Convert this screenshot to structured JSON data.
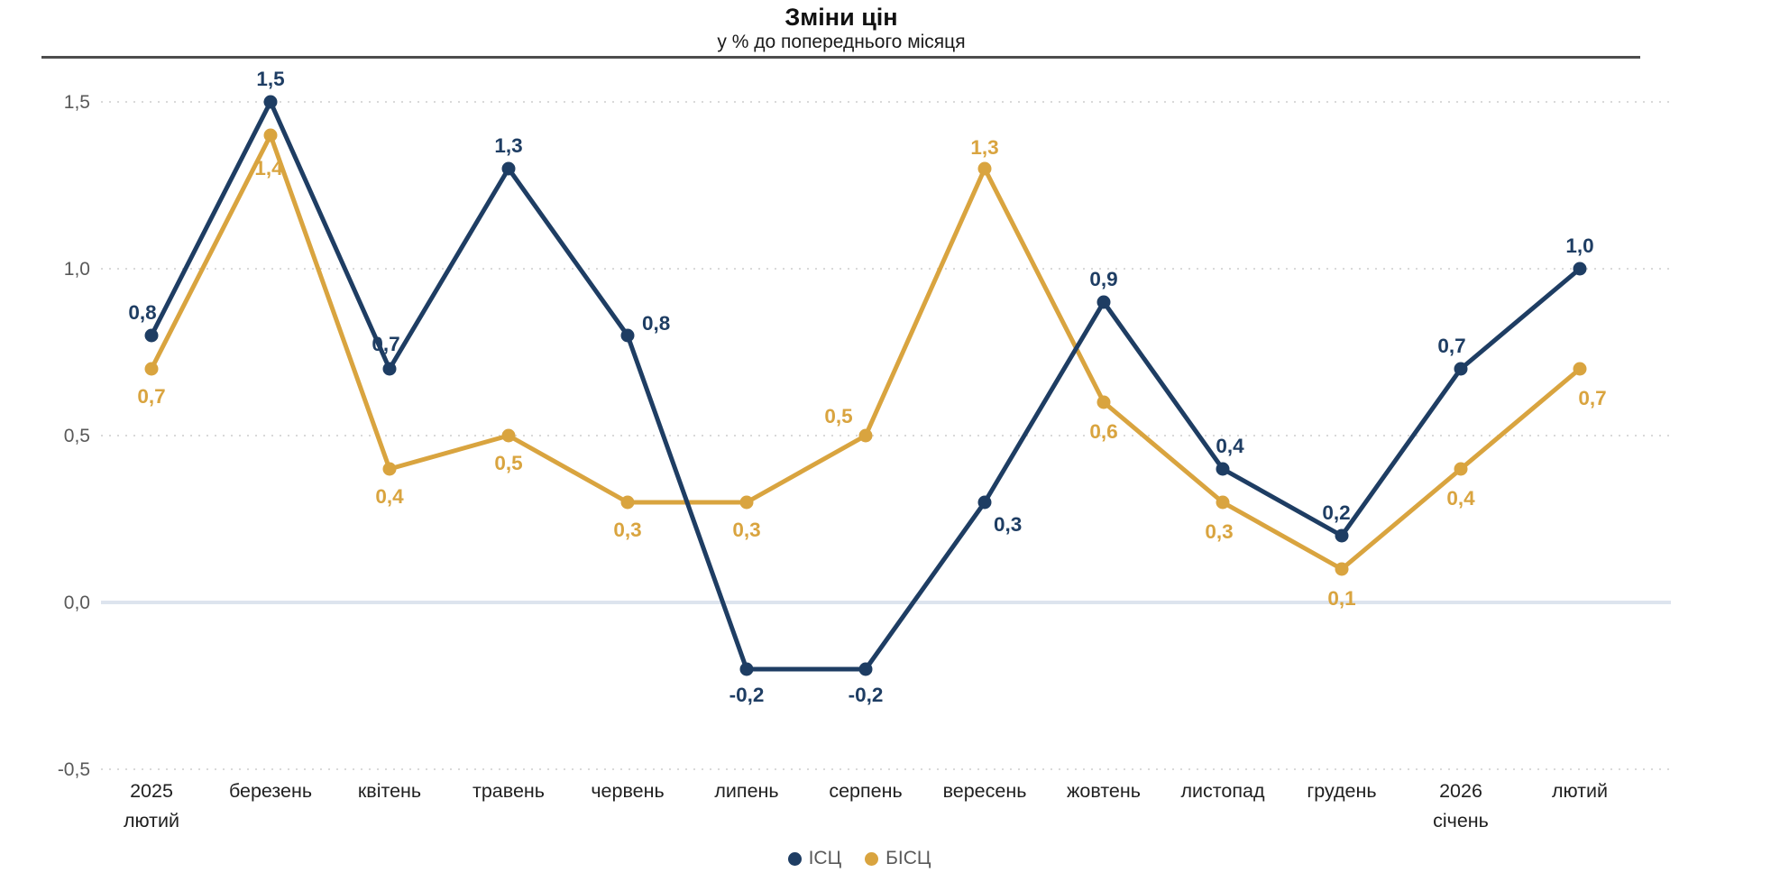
{
  "title": "Зміни цін",
  "subtitle": "у % до попереднього місяця",
  "colors": {
    "icp": "#1e3d63",
    "bicp": "#d9a43f",
    "grid_dotted": "#d9d9d9",
    "zero_line": "#dde4ee",
    "header_rule": "#4d4d4d",
    "axis_text": "#595959",
    "x_label_text": "#1f1f1f"
  },
  "legend": {
    "items": [
      {
        "label": "ІСЦ",
        "color": "#1e3d63"
      },
      {
        "label": "БІСЦ",
        "color": "#d9a43f"
      }
    ]
  },
  "chart_data": {
    "type": "line",
    "title": "Зміни цін",
    "subtitle": "у % до попереднього місяця",
    "ylim": [
      -0.5,
      1.5
    ],
    "y_ticks": [
      {
        "value": 1.5,
        "label": "1,5"
      },
      {
        "value": 1.0,
        "label": "1,0"
      },
      {
        "value": 0.5,
        "label": "0,5"
      },
      {
        "value": 0.0,
        "label": "0,0"
      },
      {
        "value": -0.5,
        "label": "-0,5"
      }
    ],
    "grid": "horizontal-dotted, solid zero line",
    "legend_position": "bottom-center",
    "categories": [
      [
        "2025",
        "лютий"
      ],
      [
        "березень"
      ],
      [
        "квітень"
      ],
      [
        "травень"
      ],
      [
        "червень"
      ],
      [
        "липень"
      ],
      [
        "серпень"
      ],
      [
        "вересень"
      ],
      [
        "жовтень"
      ],
      [
        "листопад"
      ],
      [
        "грудень"
      ],
      [
        "2026",
        "січень"
      ],
      [
        "лютий"
      ]
    ],
    "series": [
      {
        "name": "БІСЦ",
        "color": "#d9a43f",
        "values": [
          0.7,
          1.4,
          0.4,
          0.5,
          0.3,
          0.3,
          0.5,
          1.3,
          0.6,
          0.3,
          0.1,
          0.4,
          0.7
        ],
        "labels": [
          "0,7",
          "1,4",
          "0,4",
          "0,5",
          "0,3",
          "0,3",
          "0,5",
          "1,3",
          "0,6",
          "0,3",
          "0,1",
          "0,4",
          "0,7"
        ]
      },
      {
        "name": "ІСЦ",
        "color": "#1e3d63",
        "values": [
          0.8,
          1.5,
          0.7,
          1.3,
          0.8,
          -0.2,
          -0.2,
          0.3,
          0.9,
          0.4,
          0.2,
          0.7,
          1.0
        ],
        "labels": [
          "0,8",
          "1,5",
          "0,7",
          "1,3",
          "0,8",
          "-0,2",
          "-0,2",
          "0,3",
          "0,9",
          "0,4",
          "0,2",
          "0,7",
          "1,0"
        ]
      }
    ]
  }
}
